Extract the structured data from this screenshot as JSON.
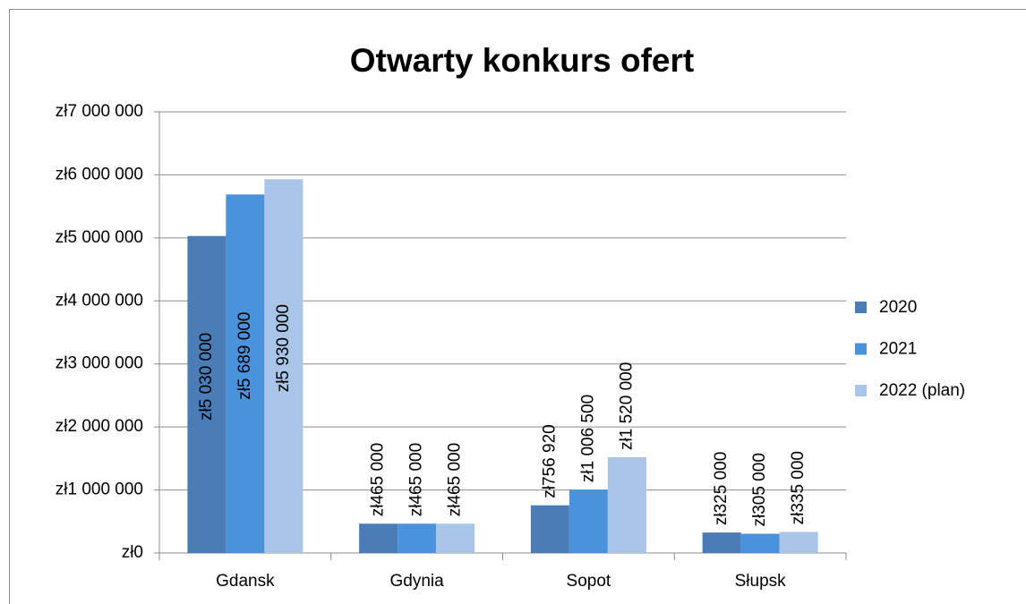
{
  "chart_data": {
    "type": "bar",
    "title": "Otwarty konkurs ofert",
    "categories": [
      "Gdansk",
      "Gdynia",
      "Sopot",
      "Słupsk"
    ],
    "series": [
      {
        "name": "2020",
        "color": "#4a7db8",
        "values": [
          5030000,
          465000,
          756920,
          325000
        ],
        "value_labels": [
          "zł5 030 000",
          "zł465 000",
          "zł756 920",
          "zł325 000"
        ]
      },
      {
        "name": "2021",
        "color": "#4a93dc",
        "values": [
          5689000,
          465000,
          1006500,
          305000
        ],
        "value_labels": [
          "zł5 689 000",
          "zł465 000",
          "zł1 006 500",
          "zł305 000"
        ]
      },
      {
        "name": "2022 (plan)",
        "color": "#a9c5e8",
        "values": [
          5930000,
          465000,
          1520000,
          335000
        ],
        "value_labels": [
          "zł5 930 000",
          "zł465 000",
          "zł1 520 000",
          "zł335 000"
        ]
      }
    ],
    "ylim": [
      0,
      7000000
    ],
    "yticks": [
      {
        "value": 0,
        "label": "zł0"
      },
      {
        "value": 1000000,
        "label": "zł1 000 000"
      },
      {
        "value": 2000000,
        "label": "zł2 000 000"
      },
      {
        "value": 3000000,
        "label": "zł3 000 000"
      },
      {
        "value": 4000000,
        "label": "zł4 000 000"
      },
      {
        "value": 5000000,
        "label": "zł5 000 000"
      },
      {
        "value": 6000000,
        "label": "zł6 000 000"
      },
      {
        "value": 7000000,
        "label": "zł7 000 000"
      }
    ],
    "grid": true,
    "legend": "right"
  }
}
